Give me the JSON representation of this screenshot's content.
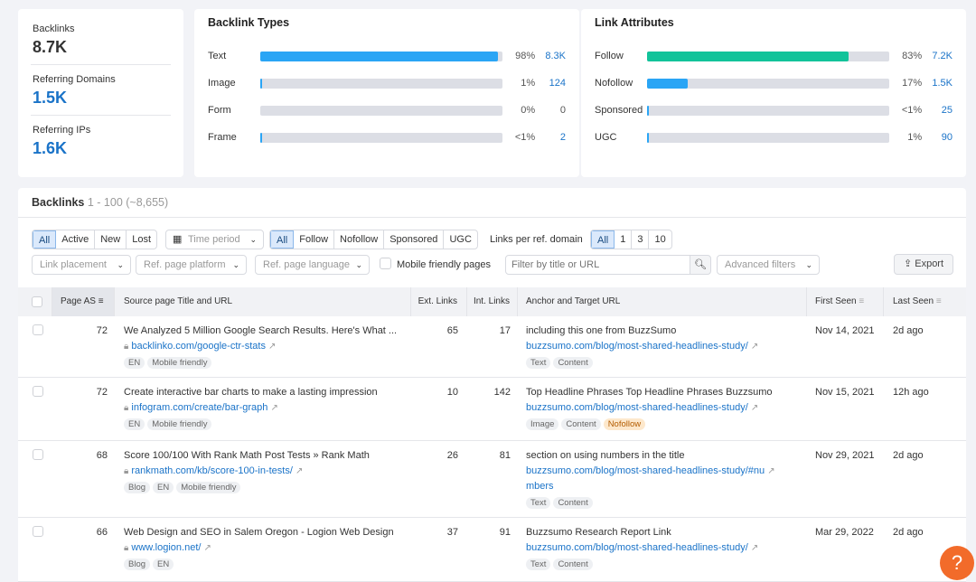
{
  "summary": {
    "backlinks_label": "Backlinks",
    "backlinks_value": "8.7K",
    "ref_domains_label": "Referring Domains",
    "ref_domains_value": "1.5K",
    "ref_ips_label": "Referring IPs",
    "ref_ips_value": "1.6K"
  },
  "backlink_types": {
    "title": "Backlink Types",
    "rows": [
      {
        "label": "Text",
        "pct": "98%",
        "count": "8.3K",
        "fill": 98
      },
      {
        "label": "Image",
        "pct": "1%",
        "count": "124",
        "fill": 1
      },
      {
        "label": "Form",
        "pct": "0%",
        "count": "0",
        "fill": 0
      },
      {
        "label": "Frame",
        "pct": "<1%",
        "count": "2",
        "fill": 0.5
      }
    ]
  },
  "link_attributes": {
    "title": "Link Attributes",
    "rows": [
      {
        "label": "Follow",
        "pct": "83%",
        "count": "7.2K",
        "fill": 83,
        "color": "#12c39a"
      },
      {
        "label": "Nofollow",
        "pct": "17%",
        "count": "1.5K",
        "fill": 17,
        "color": "#2aa5f5"
      },
      {
        "label": "Sponsored",
        "pct": "<1%",
        "count": "25",
        "fill": 0.5,
        "color": "#2aa5f5"
      },
      {
        "label": "UGC",
        "pct": "1%",
        "count": "90",
        "fill": 1,
        "color": "#2aa5f5"
      }
    ]
  },
  "colors": {
    "type_bar": "#2aa5f5",
    "follow_bar": "#12c39a"
  },
  "backlinks": {
    "title": "Backlinks",
    "range": "1 - 100 (~8,655)"
  },
  "filters": {
    "status": [
      "All",
      "Active",
      "New",
      "Lost"
    ],
    "time_period": "Time period",
    "attrs": [
      "All",
      "Follow",
      "Nofollow",
      "Sponsored",
      "UGC"
    ],
    "per_domain_label": "Links per ref. domain",
    "per_domain": [
      "All",
      "1",
      "3",
      "10"
    ],
    "link_placement": "Link placement",
    "ref_platform": "Ref. page platform",
    "ref_language": "Ref. page language",
    "mobile_friendly": "Mobile friendly pages",
    "search_placeholder": "Filter by title or URL",
    "advanced": "Advanced filters",
    "export": "Export"
  },
  "columns": {
    "page_as": "Page AS",
    "source": "Source page Title and URL",
    "ext": "Ext. Links",
    "int": "Int. Links",
    "anchor": "Anchor and Target URL",
    "first": "First Seen",
    "last": "Last Seen"
  },
  "rows": [
    {
      "as": "72",
      "title": "We Analyzed 5 Million Google Search Results. Here's What ...",
      "url": "backlinko.com/google-ctr-stats",
      "tags": [
        "EN",
        "Mobile friendly"
      ],
      "ext": "65",
      "int": "17",
      "anchor": "including this one from BuzzSumo",
      "target": "buzzsumo.com/blog/most-shared-headlines-study/",
      "target2": "",
      "atags": [
        "Text",
        "Content"
      ],
      "first": "Nov 14, 2021",
      "last": "2d ago"
    },
    {
      "as": "72",
      "title": "Create interactive bar charts to make a lasting impression",
      "url": "infogram.com/create/bar-graph",
      "tags": [
        "EN",
        "Mobile friendly"
      ],
      "ext": "10",
      "int": "142",
      "anchor": "Top Headline Phrases Top Headline Phrases Buzzsumo",
      "target": "buzzsumo.com/blog/most-shared-headlines-study/",
      "target2": "",
      "atags": [
        "Image",
        "Content",
        "Nofollow"
      ],
      "first": "Nov 15, 2021",
      "last": "12h ago"
    },
    {
      "as": "68",
      "title": "Score 100/100 With Rank Math Post Tests » Rank Math",
      "url": "rankmath.com/kb/score-100-in-tests/",
      "tags": [
        "Blog",
        "EN",
        "Mobile friendly"
      ],
      "ext": "26",
      "int": "81",
      "anchor": "section on using numbers in the title",
      "target": "buzzsumo.com/blog/most-shared-headlines-study/#nu",
      "target2": "mbers",
      "atags": [
        "Text",
        "Content"
      ],
      "first": "Nov 29, 2021",
      "last": "2d ago"
    },
    {
      "as": "66",
      "title": "Web Design and SEO in Salem Oregon - Logion Web Design",
      "url": "www.logion.net/",
      "tags": [
        "Blog",
        "EN"
      ],
      "ext": "37",
      "int": "91",
      "anchor": "Buzzsumo Research Report Link",
      "target": "buzzsumo.com/blog/most-shared-headlines-study/",
      "target2": "",
      "atags": [
        "Text",
        "Content"
      ],
      "first": "Mar 29, 2022",
      "last": "2d ago"
    }
  ],
  "help": "?"
}
